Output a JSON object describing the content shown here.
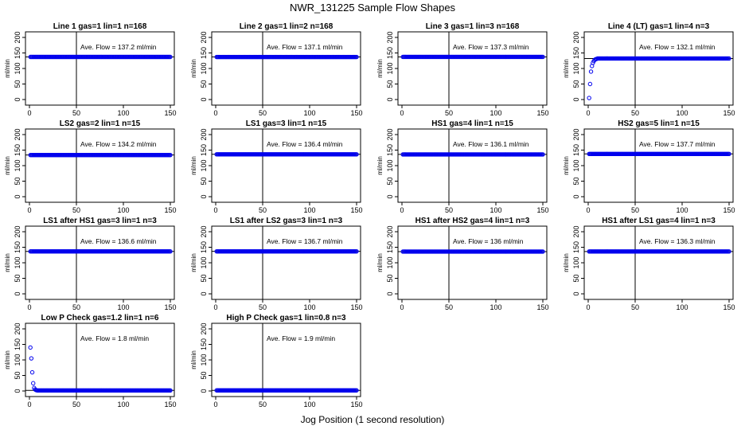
{
  "title": "NWR_131225  Sample Flow Shapes",
  "xlabel": "Jog Position (1 second resolution)",
  "ylabel": "ml/min",
  "colors": {
    "points": "#0000ee",
    "axes": "#000000"
  },
  "chart_data": {
    "type": "scatter",
    "xlim": [
      0,
      150
    ],
    "ylim": [
      0,
      200
    ],
    "x_ticks": [
      0,
      50,
      100,
      150
    ],
    "y_ticks": [
      0,
      50,
      100,
      150,
      200
    ],
    "vline_x": 50,
    "panels": [
      {
        "title": "Line 1 gas=1 lin=1 n=168",
        "annotation": "Ave. Flow = 137.2  ml/min",
        "ave_flow": 137.2,
        "start": []
      },
      {
        "title": "Line 2 gas=1 lin=2 n=168",
        "annotation": "Ave. Flow = 137.1  ml/min",
        "ave_flow": 137.1,
        "start": []
      },
      {
        "title": "Line 3 gas=1 lin=3 n=168",
        "annotation": "Ave. Flow = 137.3  ml/min",
        "ave_flow": 137.3,
        "start": []
      },
      {
        "title": "Line 4 (LT) gas=1 lin=4 n=3",
        "annotation": "Ave. Flow = 132.1  ml/min",
        "ave_flow": 132.1,
        "start": [
          5,
          50,
          90,
          108,
          118,
          124,
          128,
          130,
          131
        ]
      },
      {
        "title": "LS2 gas=2 lin=1 n=15",
        "annotation": "Ave. Flow = 134.2  ml/min",
        "ave_flow": 134.2,
        "start": []
      },
      {
        "title": "LS1 gas=3 lin=1 n=15",
        "annotation": "Ave. Flow = 136.4  ml/min",
        "ave_flow": 136.4,
        "start": []
      },
      {
        "title": "HS1 gas=4 lin=1 n=15",
        "annotation": "Ave. Flow = 136.1  ml/min",
        "ave_flow": 136.1,
        "start": []
      },
      {
        "title": "HS2 gas=5 lin=1 n=15",
        "annotation": "Ave. Flow = 137.7  ml/min",
        "ave_flow": 137.7,
        "start": []
      },
      {
        "title": "LS1 after HS1 gas=3 lin=1 n=3",
        "annotation": "Ave. Flow = 136.6  ml/min",
        "ave_flow": 136.6,
        "start": []
      },
      {
        "title": "LS1 after LS2 gas=3 lin=1 n=3",
        "annotation": "Ave. Flow = 136.7  ml/min",
        "ave_flow": 136.7,
        "start": []
      },
      {
        "title": "HS1 after HS2 gas=4 lin=1 n=3",
        "annotation": "Ave. Flow = 136  ml/min",
        "ave_flow": 136,
        "start": []
      },
      {
        "title": "HS1 after LS1 gas=4 lin=1 n=3",
        "annotation": "Ave. Flow = 136.3  ml/min",
        "ave_flow": 136.3,
        "start": []
      },
      {
        "title": "Low P Check gas=1.2 lin=1 n=6",
        "annotation": "Ave. Flow = 1.8  ml/min",
        "ave_flow": 1.8,
        "start": [
          140,
          105,
          60,
          25,
          10,
          5,
          3,
          2
        ]
      },
      {
        "title": "High P Check gas=1 lin=0.8 n=3",
        "annotation": "Ave. Flow = 1.9  ml/min",
        "ave_flow": 1.9,
        "start": []
      }
    ]
  }
}
